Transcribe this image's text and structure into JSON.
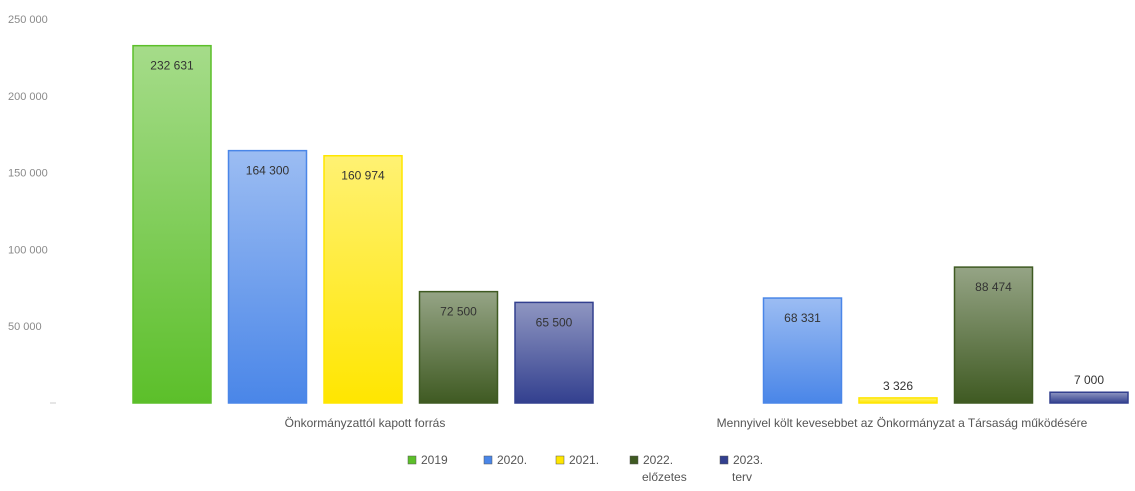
{
  "chart_data": {
    "type": "bar",
    "categories": [
      "Önkormányzattól kapott forrás",
      "Mennyivel költ kevesebbet az Önkormányzat a Társaság működésére"
    ],
    "series": [
      {
        "name": "2019",
        "values": [
          232631,
          null
        ],
        "labels": [
          "232 631",
          ""
        ],
        "color": "#5cbf2a"
      },
      {
        "name": "2020.",
        "values": [
          164300,
          68331
        ],
        "labels": [
          "164 300",
          "68 331"
        ],
        "color": "#4a86e8"
      },
      {
        "name": "2021.",
        "values": [
          160974,
          3326
        ],
        "labels": [
          "160 974",
          "3 326"
        ],
        "color": "#ffe600"
      },
      {
        "name": "2022. előzetes",
        "values": [
          72500,
          88474
        ],
        "labels": [
          "72 500",
          "88 474"
        ],
        "color": "#3f5a22"
      },
      {
        "name": "2023. terv",
        "values": [
          65500,
          7000
        ],
        "labels": [
          "65 500",
          "7 000"
        ],
        "color": "#33408f"
      }
    ],
    "legend": [
      {
        "line1": "2019",
        "line2": ""
      },
      {
        "line1": "2020.",
        "line2": ""
      },
      {
        "line1": "2021.",
        "line2": ""
      },
      {
        "line1": "2022.",
        "line2": "előzetes"
      },
      {
        "line1": "2023.",
        "line2": "terv"
      }
    ],
    "y_ticks": [
      "250 000",
      "200 000",
      "150 000",
      "100 000",
      "50 000",
      ""
    ],
    "ylim": [
      0,
      250000
    ],
    "legend_position": "bottom",
    "grid": false
  }
}
